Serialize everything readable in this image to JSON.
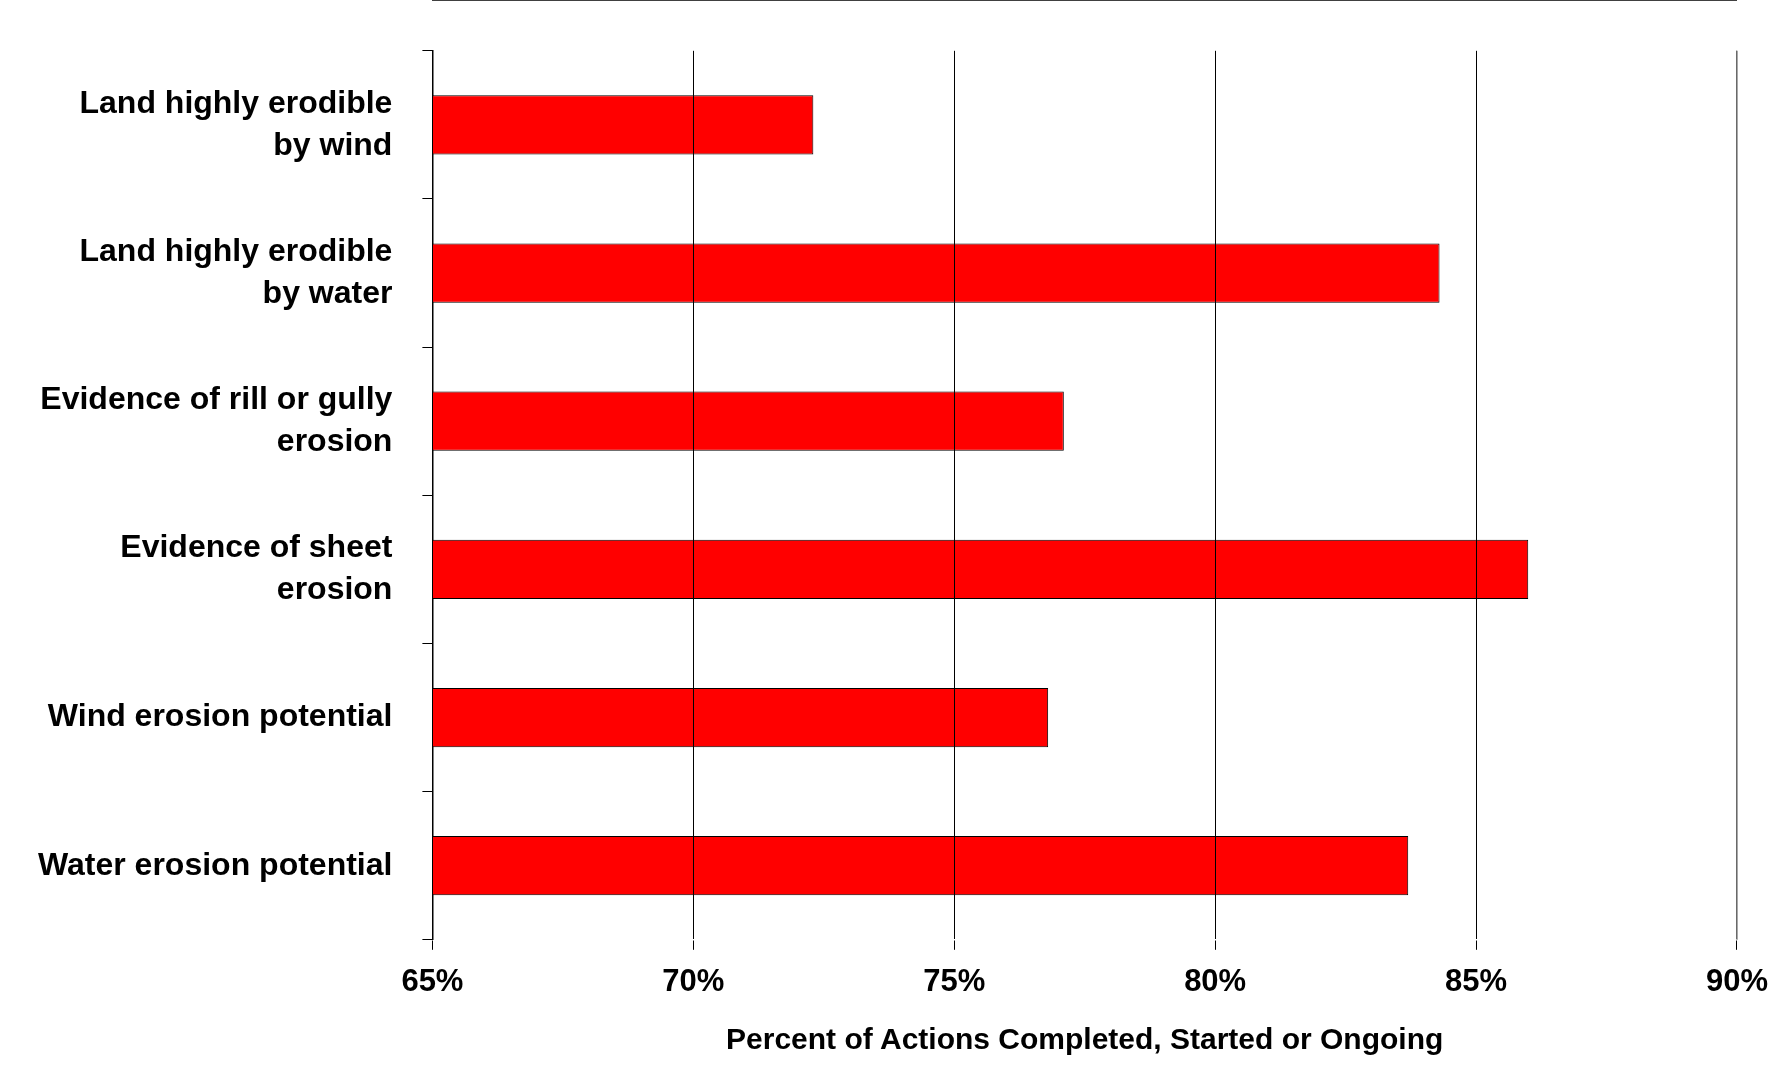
{
  "chart_data": {
    "type": "bar",
    "orientation": "horizontal",
    "categories": [
      "Land highly erodible\nby wind",
      "Land highly erodible\nby water",
      "Evidence of rill or gully\nerosion",
      "Evidence of sheet\nerosion",
      "Wind erosion potential",
      "Water erosion potential"
    ],
    "values": [
      72.3,
      84.3,
      77.1,
      86.0,
      76.8,
      83.7
    ],
    "color": "#ff0000",
    "xlim": [
      65,
      90
    ],
    "xticks": [
      {
        "value": 65,
        "label": "65%"
      },
      {
        "value": 70,
        "label": "70%"
      },
      {
        "value": 75,
        "label": "75%"
      },
      {
        "value": 80,
        "label": "80%"
      },
      {
        "value": 85,
        "label": "85%"
      },
      {
        "value": 90,
        "label": "90%"
      }
    ],
    "xlabel": "Percent of Actions Completed, Started or Ongoing",
    "grid": "x",
    "legend": false
  }
}
